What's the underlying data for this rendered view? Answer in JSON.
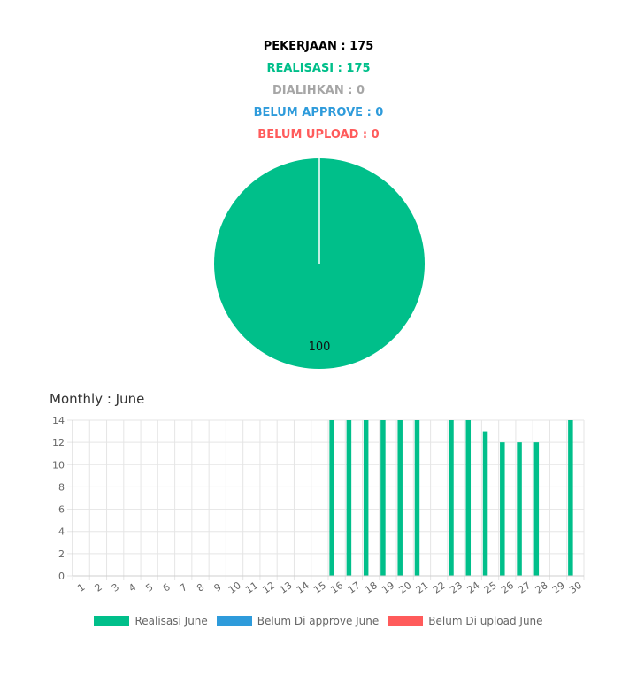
{
  "summary": {
    "pekerjaan": "PEKERJAAN : 175",
    "realisasi": "REALISASI : 175",
    "dialihkan": "DIALIHKAN : 0",
    "belum_approve": "BELUM APPROVE : 0",
    "belum_upload": "BELUM UPLOAD : 0"
  },
  "colors": {
    "black": "#000000",
    "green": "#00BF8A",
    "gray": "#A6A6A6",
    "blue": "#2E9BDB",
    "red": "#FF5B5B",
    "grid": "#E5E5E5",
    "tick": "#666666"
  },
  "monthly": {
    "title": "Monthly : June"
  },
  "chart_data": [
    {
      "type": "pie",
      "slices": [
        {
          "label": "Realisasi",
          "value": 100,
          "color": "#00BF8A"
        }
      ],
      "data_labels": [
        "100"
      ]
    },
    {
      "type": "bar",
      "categories": [
        "1",
        "2",
        "3",
        "4",
        "5",
        "6",
        "7",
        "8",
        "9",
        "10",
        "11",
        "12",
        "13",
        "14",
        "15",
        "16",
        "17",
        "18",
        "19",
        "20",
        "21",
        "22",
        "23",
        "24",
        "25",
        "26",
        "27",
        "28",
        "29",
        "30"
      ],
      "series": [
        {
          "name": "Realisasi June",
          "color": "#00BF8A",
          "values": [
            0,
            0,
            0,
            0,
            0,
            0,
            0,
            0,
            0,
            0,
            0,
            0,
            0,
            0,
            0,
            14,
            14,
            14,
            14,
            14,
            14,
            0,
            14,
            14,
            13,
            12,
            12,
            12,
            0,
            14
          ]
        },
        {
          "name": "Belum Di approve June",
          "color": "#2E9BDB",
          "values": [
            0,
            0,
            0,
            0,
            0,
            0,
            0,
            0,
            0,
            0,
            0,
            0,
            0,
            0,
            0,
            0,
            0,
            0,
            0,
            0,
            0,
            0,
            0,
            0,
            0,
            0,
            0,
            0,
            0,
            0
          ]
        },
        {
          "name": "Belum Di upload June",
          "color": "#FF5B5B",
          "values": [
            0,
            0,
            0,
            0,
            0,
            0,
            0,
            0,
            0,
            0,
            0,
            0,
            0,
            0,
            0,
            0,
            0,
            0,
            0,
            0,
            0,
            0,
            0,
            0,
            0,
            0,
            0,
            0,
            0,
            0
          ]
        }
      ],
      "y_ticks": [
        "0",
        "2",
        "4",
        "6",
        "8",
        "10",
        "12",
        "14"
      ],
      "ylim": [
        0,
        14
      ],
      "grid": true,
      "legend": "bottom"
    }
  ]
}
